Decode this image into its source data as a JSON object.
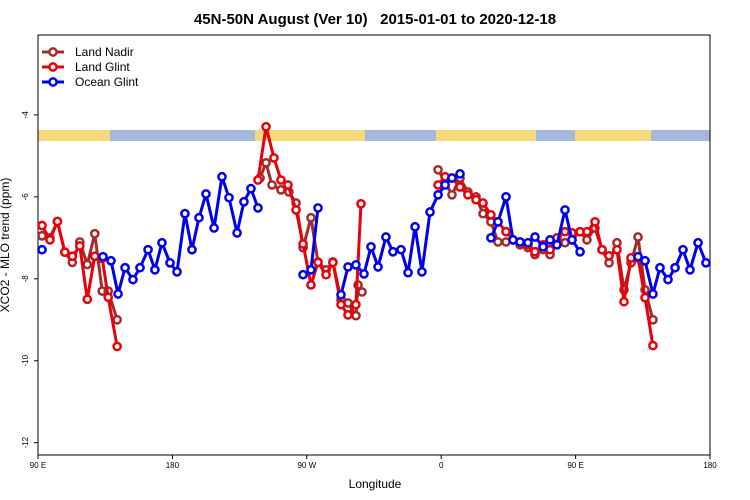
{
  "chart_data": {
    "type": "line",
    "title": "45N-50N August (Ver 10)   2015-01-01 to 2020-12-18",
    "x_label": "Longitude",
    "y_label": "XCO2 - MLO trend (ppm)",
    "xlim": [
      90,
      540
    ],
    "ylim": [
      -12.3,
      -2.05
    ],
    "xticks": [
      {
        "value": 90,
        "label": "90 E"
      },
      {
        "value": 180,
        "label": "180"
      },
      {
        "value": 270,
        "label": "90 W"
      },
      {
        "value": 360,
        "label": "0"
      },
      {
        "value": 450,
        "label": "90 E"
      },
      {
        "value": 540,
        "label": "180"
      }
    ],
    "yticks": [
      -4,
      -6,
      -8,
      -10,
      -12
    ],
    "legend": "top-left",
    "series": [
      {
        "name": "Land Nadir",
        "color": "#a52a2a",
        "x": [
          92.7,
          98,
          103,
          108,
          113,
          118,
          123,
          128,
          133,
          137,
          143,
          null,
          238.7,
          242.7,
          246.7,
          252.7,
          258,
          262.8,
          267.5,
          272.8,
          277.5,
          282.9,
          287.5,
          292.9,
          297.6,
          302.9,
          304.3,
          307,
          null,
          357.9,
          362.6,
          367.2,
          372.6,
          377.9,
          383.3,
          388,
          393.3,
          398,
          403.4,
          408.1,
          412.8,
          418.1,
          422.8,
          428.2,
          432.9,
          437.5,
          442.9,
          447.6,
          453,
          457.6,
          463,
          467.7,
          472.4,
          477.7,
          482.4,
          487.1,
          491.8,
          496.5,
          501.8
        ],
        "values": [
          -6.95,
          -7.0,
          -6.6,
          -7.35,
          -7.6,
          -7.1,
          -7.65,
          -6.9,
          -8.3,
          -8.3,
          -9.0,
          null,
          -5.54,
          -5.17,
          -5.71,
          -5.83,
          -5.88,
          -6.15,
          -7.24,
          -6.51,
          -7.59,
          -7.78,
          -7.59,
          -8.51,
          -8.59,
          -8.9,
          -8.15,
          -8.32,
          null,
          -5.34,
          -5.63,
          -5.95,
          -5.54,
          -5.88,
          -6.0,
          -6.41,
          -6.61,
          -7.1,
          -7.1,
          -7.05,
          -7.17,
          -7.24,
          -7.41,
          -7.29,
          -7.41,
          -7.05,
          -7.12,
          -7.05,
          -6.85,
          -7.05,
          -6.76,
          -7.29,
          -7.61,
          -7.12,
          -8.27,
          -7.61,
          -6.98,
          -8.27,
          -9.0
        ]
      },
      {
        "name": "Land Glint",
        "color": "#e8000b",
        "x": [
          92.7,
          98,
          103,
          108,
          113,
          118,
          123,
          128,
          133,
          137,
          143,
          null,
          237.3,
          242.7,
          248,
          252.7,
          257.4,
          262.8,
          267.5,
          272.8,
          277.5,
          282.9,
          287.5,
          292.9,
          297.6,
          302.9,
          306.3,
          null,
          357.9,
          362.6,
          367.2,
          372.6,
          377.9,
          383.3,
          388,
          393.3,
          398,
          403.4,
          408.1,
          412.8,
          418.1,
          422.8,
          428.2,
          432.9,
          437.5,
          442.9,
          447.6,
          453,
          457.6,
          463,
          467.7,
          472.4,
          477.7,
          482.4,
          487.1,
          491.8,
          496.5,
          501.8
        ],
        "values": [
          -6.7,
          -7.05,
          -6.6,
          -7.35,
          -7.45,
          -7.2,
          -8.5,
          -7.45,
          -7.5,
          -8.45,
          -9.65,
          null,
          -5.59,
          -4.29,
          -5.05,
          -5.59,
          -5.71,
          -6.32,
          -7.15,
          -8.15,
          -7.6,
          -7.9,
          -7.6,
          -8.63,
          -8.88,
          -8.63,
          -6.17,
          null,
          -5.71,
          -5.51,
          -5.54,
          -5.76,
          -5.95,
          -6.07,
          -6.15,
          -6.44,
          -6.61,
          -6.85,
          -7.05,
          -7.1,
          -7.17,
          -7.34,
          -7.17,
          -7.29,
          -7.0,
          -6.85,
          -6.88,
          -6.85,
          -6.85,
          -6.61,
          -7.29,
          -7.44,
          -7.29,
          -8.56,
          -7.49,
          -7.49,
          -8.46,
          -9.63
        ]
      },
      {
        "name": "Ocean Glint",
        "color": "#0000ee",
        "x": [
          92.7,
          null,
          133.5,
          138.9,
          143.6,
          148.3,
          153.6,
          158.3,
          163.7,
          168.3,
          173,
          178.4,
          183.1,
          188.4,
          193.1,
          197.8,
          202.5,
          207.9,
          213.2,
          217.9,
          223.3,
          227.9,
          232.6,
          237.3,
          null,
          267.5,
          272.8,
          277.5,
          null,
          292.9,
          297.6,
          302.9,
          308.3,
          313,
          317.7,
          323,
          327.7,
          333.1,
          337.8,
          342.5,
          347.1,
          352.5,
          357.9,
          362.6,
          367.2,
          372.6,
          null,
          393.3,
          398,
          403.4,
          408.1,
          412.8,
          418.1,
          422.8,
          428.2,
          432.9,
          437.5,
          442.9,
          447.6,
          453,
          null,
          491.8,
          496.5,
          501.8,
          506.5,
          511.9,
          516.6,
          521.9,
          526.6,
          532,
          537.3
        ],
        "values": [
          -7.29,
          null,
          -7.46,
          -7.56,
          -8.37,
          -7.73,
          -8.02,
          -7.73,
          -7.29,
          -7.78,
          -7.12,
          -7.61,
          -7.83,
          -6.41,
          -7.29,
          -6.51,
          -5.93,
          -6.76,
          -5.51,
          -6.02,
          -6.88,
          -6.12,
          -5.8,
          -6.27,
          null,
          -7.9,
          -7.78,
          -6.27,
          null,
          -8.39,
          -7.71,
          -7.66,
          -7.88,
          -7.22,
          -7.71,
          -6.98,
          -7.34,
          -7.29,
          -7.85,
          -6.73,
          -7.83,
          -6.37,
          -5.95,
          -5.71,
          -5.54,
          -5.44,
          null,
          -7.0,
          -6.61,
          -6.0,
          -7.05,
          -7.1,
          -7.12,
          -6.98,
          -7.22,
          -7.05,
          -7.17,
          -6.32,
          -7.05,
          -7.34,
          null,
          -7.46,
          -7.56,
          -8.37,
          -7.73,
          -8.02,
          -7.73,
          -7.29,
          -7.78,
          -7.12,
          -7.61
        ]
      }
    ]
  }
}
